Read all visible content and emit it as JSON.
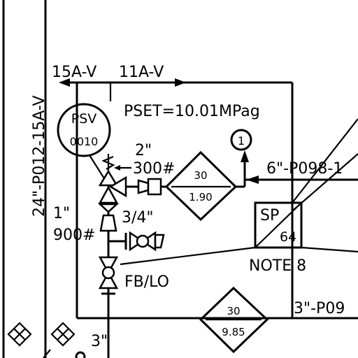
{
  "lines": {
    "vertical_line": "24\"-P012-15A-V",
    "top_left": "15A-V",
    "top_right": "11A-V",
    "right_line": "6\"-P098-1",
    "bottom_right_line": "3\"-P09",
    "bottom_left_size": "3\""
  },
  "psv": {
    "tag_top": "PSV",
    "tag_bottom": "0010",
    "set_pressure": "PSET=10.01MPag",
    "inlet_size": "1\"",
    "inlet_rating": "900#",
    "outlet_size": "2\"",
    "outlet_rating": "300#"
  },
  "diamond_upper": {
    "top": "30",
    "bottom": "1.90"
  },
  "diamond_lower": {
    "top": "30",
    "bottom": "9.85"
  },
  "note_circle": "1",
  "small_valve_size": "3/4\"",
  "fb_lo": "FB/LO",
  "sp_box": {
    "top": "SP",
    "bottom": "64"
  },
  "note": "NOTE 8"
}
